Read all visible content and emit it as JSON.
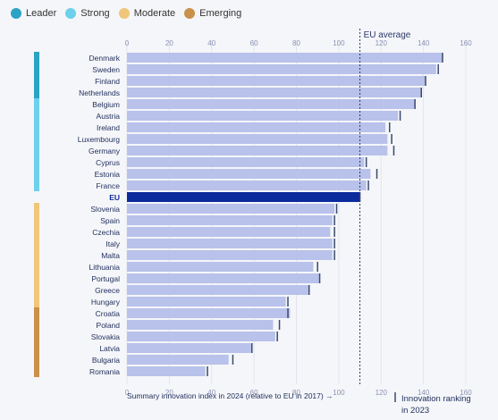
{
  "legend": [
    {
      "label": "Leader",
      "color": "#2aa3c4"
    },
    {
      "label": "Strong",
      "color": "#6dd0ec"
    },
    {
      "label": "Moderate",
      "color": "#f1c57a"
    },
    {
      "label": "Emerging",
      "color": "#c9914a"
    }
  ],
  "chart_data": {
    "type": "bar",
    "orientation": "horizontal",
    "categories": [
      "Denmark",
      "Sweden",
      "Finland",
      "Netherlands",
      "Belgium",
      "Austria",
      "Ireland",
      "Luxembourg",
      "Germany",
      "Cyprus",
      "Estonia",
      "France",
      "EU",
      "Slovenia",
      "Spain",
      "Czechia",
      "Italy",
      "Malta",
      "Lithuania",
      "Portugal",
      "Greece",
      "Hungary",
      "Croatia",
      "Poland",
      "Slovakia",
      "Latvia",
      "Bulgaria",
      "Romania"
    ],
    "values": [
      149,
      146,
      141,
      139,
      136,
      128,
      122,
      123,
      123,
      112,
      115,
      113,
      110,
      98,
      97,
      96,
      97,
      97,
      88,
      91,
      86,
      75,
      77,
      69,
      70,
      59,
      48,
      37
    ],
    "markers": [
      149,
      147,
      141,
      139,
      136,
      129,
      124,
      125,
      126,
      113,
      118,
      114,
      110,
      99,
      98,
      98,
      98,
      98,
      90,
      91,
      86,
      76,
      76,
      72,
      71,
      59,
      50,
      38
    ],
    "highlight": "EU",
    "xlim": [
      0,
      160
    ],
    "xticks": [
      "0",
      "20",
      "40",
      "60",
      "80",
      "100",
      "120",
      "140",
      "160"
    ],
    "xlabel": "Summary innovation index in 2024 (relative to EU in 2017) →",
    "reference_line": {
      "value": 110,
      "label": "EU average"
    },
    "marker_legend": [
      "Innovation ranking",
      "in 2023"
    ],
    "groups": [
      {
        "name": "Leader",
        "from": 0,
        "to": 3,
        "color": "#2aa3c4"
      },
      {
        "name": "Strong",
        "from": 4,
        "to": 11,
        "color": "#6dd0ec"
      },
      {
        "name": "Moderate",
        "from": 13,
        "to": 21,
        "color": "#f1c57a"
      },
      {
        "name": "Emerging",
        "from": 22,
        "to": 27,
        "color": "#c9914a"
      }
    ],
    "bar_color": "#b8c2ea",
    "highlight_color": "#0b2a9c",
    "marker_color": "#3a4a6b"
  }
}
